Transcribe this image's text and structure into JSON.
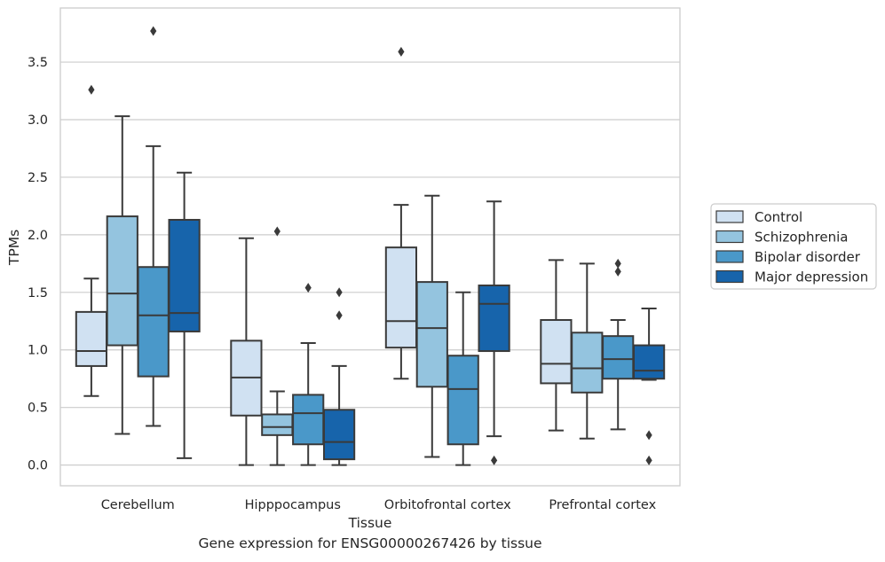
{
  "chart_data": {
    "type": "box",
    "xlabel": "Tissue",
    "ylabel": "TPMs",
    "caption": "Gene expression for ENSG00000267426 by tissue",
    "ylim": [
      -0.18,
      3.97
    ],
    "yticks": [
      0.0,
      0.5,
      1.0,
      1.5,
      2.0,
      2.5,
      3.0,
      3.5
    ],
    "ytick_labels": [
      "0.0",
      "0.5",
      "1.0",
      "1.5",
      "2.0",
      "2.5",
      "3.0",
      "3.5"
    ],
    "grid": "horizontal",
    "legend_position": "right",
    "categories": [
      "Cerebellum",
      "Hipppocampus",
      "Orbitofrontal cortex",
      "Prefrontal cortex"
    ],
    "series": [
      {
        "name": "Control",
        "color": "#d0e1f2",
        "boxes": [
          {
            "whisker_low": 0.6,
            "q1": 0.86,
            "median": 0.99,
            "q3": 1.33,
            "whisker_high": 1.62,
            "outliers": [
              3.26
            ]
          },
          {
            "whisker_low": 0.0,
            "q1": 0.43,
            "median": 0.76,
            "q3": 1.08,
            "whisker_high": 1.97,
            "outliers": []
          },
          {
            "whisker_low": 0.75,
            "q1": 1.02,
            "median": 1.25,
            "q3": 1.89,
            "whisker_high": 2.26,
            "outliers": [
              3.59
            ]
          },
          {
            "whisker_low": 0.3,
            "q1": 0.71,
            "median": 0.88,
            "q3": 1.26,
            "whisker_high": 1.78,
            "outliers": []
          }
        ]
      },
      {
        "name": "Schizophrenia",
        "color": "#94c4df",
        "boxes": [
          {
            "whisker_low": 0.27,
            "q1": 1.04,
            "median": 1.49,
            "q3": 2.16,
            "whisker_high": 3.03,
            "outliers": []
          },
          {
            "whisker_low": 0.0,
            "q1": 0.26,
            "median": 0.33,
            "q3": 0.44,
            "whisker_high": 0.64,
            "outliers": [
              2.03
            ]
          },
          {
            "whisker_low": 0.07,
            "q1": 0.68,
            "median": 1.19,
            "q3": 1.59,
            "whisker_high": 2.34,
            "outliers": []
          },
          {
            "whisker_low": 0.23,
            "q1": 0.63,
            "median": 0.84,
            "q3": 1.15,
            "whisker_high": 1.75,
            "outliers": []
          }
        ]
      },
      {
        "name": "Bipolar disorder",
        "color": "#4a98c9",
        "boxes": [
          {
            "whisker_low": 0.34,
            "q1": 0.77,
            "median": 1.3,
            "q3": 1.72,
            "whisker_high": 2.77,
            "outliers": [
              3.77
            ]
          },
          {
            "whisker_low": 0.0,
            "q1": 0.18,
            "median": 0.45,
            "q3": 0.61,
            "whisker_high": 1.06,
            "outliers": [
              1.54
            ]
          },
          {
            "whisker_low": 0.0,
            "q1": 0.18,
            "median": 0.66,
            "q3": 0.95,
            "whisker_high": 1.5,
            "outliers": []
          },
          {
            "whisker_low": 0.31,
            "q1": 0.75,
            "median": 0.92,
            "q3": 1.12,
            "whisker_high": 1.26,
            "outliers": [
              1.68,
              1.75
            ]
          }
        ]
      },
      {
        "name": "Major depression",
        "color": "#1764ab",
        "boxes": [
          {
            "whisker_low": 0.06,
            "q1": 1.16,
            "median": 1.32,
            "q3": 2.13,
            "whisker_high": 2.54,
            "outliers": []
          },
          {
            "whisker_low": 0.0,
            "q1": 0.05,
            "median": 0.2,
            "q3": 0.48,
            "whisker_high": 0.86,
            "outliers": [
              1.3,
              1.5
            ]
          },
          {
            "whisker_low": 0.25,
            "q1": 0.99,
            "median": 1.4,
            "q3": 1.56,
            "whisker_high": 2.29,
            "outliers": [
              0.04
            ]
          },
          {
            "whisker_low": 0.74,
            "q1": 0.75,
            "median": 0.82,
            "q3": 1.04,
            "whisker_high": 1.36,
            "outliers": [
              0.04,
              0.26
            ]
          }
        ]
      }
    ]
  }
}
